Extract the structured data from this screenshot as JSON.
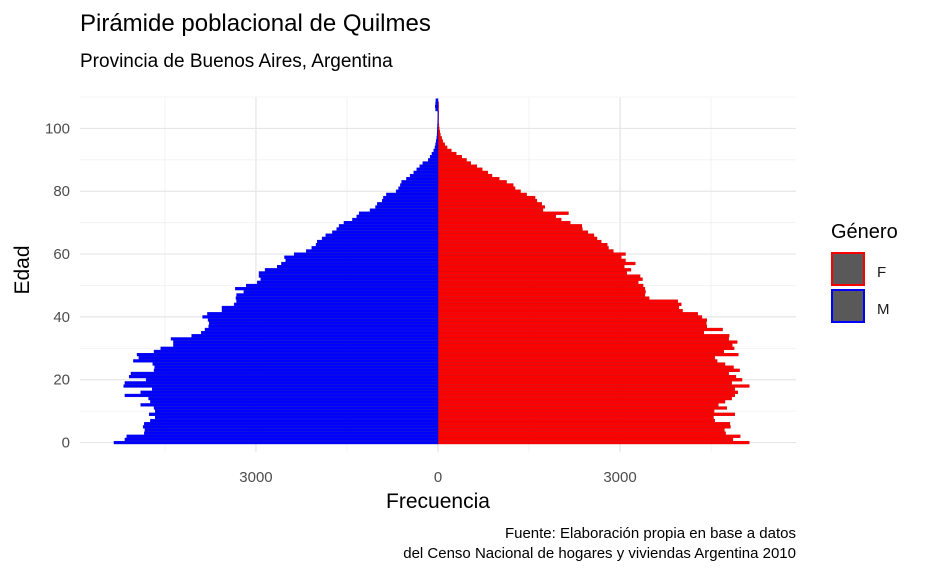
{
  "chart_data": {
    "type": "bar",
    "orientation": "horizontal",
    "layout": "population-pyramid",
    "title": "Pirámide poblacional de Quilmes",
    "subtitle": "Provincia de Buenos Aires, Argentina",
    "xlabel": "Frecuencia",
    "ylabel": "Edad",
    "caption": [
      "Fuente: Elaboración propia en base a datos",
      "del Censo Nacional de hogares y viviendas Argentina 2010"
    ],
    "xlim": [
      -5900,
      5900
    ],
    "ylim": [
      -3,
      110
    ],
    "x_ticks": [
      -3000,
      0,
      3000
    ],
    "x_tick_labels": [
      "3000",
      "0",
      "3000"
    ],
    "y_ticks": [
      0,
      20,
      40,
      60,
      80,
      100
    ],
    "y_tick_labels": [
      "0",
      "20",
      "40",
      "60",
      "80",
      "100"
    ],
    "grid": true,
    "legend": {
      "title": "Género",
      "position": "right",
      "entries": [
        {
          "label": "F",
          "fill": "#595959",
          "stroke": "#ff0000"
        },
        {
          "label": "M",
          "fill": "#595959",
          "stroke": "#0000ff"
        }
      ]
    },
    "ages": [
      0,
      1,
      2,
      3,
      4,
      5,
      6,
      7,
      8,
      9,
      10,
      11,
      12,
      13,
      14,
      15,
      16,
      17,
      18,
      19,
      20,
      21,
      22,
      23,
      24,
      25,
      26,
      27,
      28,
      29,
      30,
      31,
      32,
      33,
      34,
      35,
      36,
      37,
      38,
      39,
      40,
      41,
      42,
      43,
      44,
      45,
      46,
      47,
      48,
      49,
      50,
      51,
      52,
      53,
      54,
      55,
      56,
      57,
      58,
      59,
      60,
      61,
      62,
      63,
      64,
      65,
      66,
      67,
      68,
      69,
      70,
      71,
      72,
      73,
      74,
      75,
      76,
      77,
      78,
      79,
      80,
      81,
      82,
      83,
      84,
      85,
      86,
      87,
      88,
      89,
      90,
      91,
      92,
      93,
      94,
      95,
      96,
      97,
      98,
      99,
      100,
      101,
      102,
      103,
      104,
      105,
      106,
      107,
      108,
      109
    ],
    "series": [
      {
        "name": "F",
        "fill": "#ff0000",
        "stroke": "#cc0000",
        "values": [
          5130,
          4860,
          4980,
          4740,
          4720,
          4820,
          4810,
          4560,
          4540,
          4890,
          4550,
          4760,
          4620,
          4730,
          4840,
          4890,
          4940,
          4890,
          5130,
          4840,
          5010,
          4910,
          4790,
          4970,
          4870,
          4730,
          4600,
          4560,
          4950,
          4710,
          4880,
          4850,
          4930,
          4790,
          4800,
          4380,
          4690,
          4430,
          4420,
          4430,
          4350,
          4280,
          4030,
          3970,
          4010,
          3950,
          3480,
          3410,
          3420,
          3410,
          3380,
          3300,
          3370,
          3330,
          3110,
          3180,
          3070,
          3250,
          3090,
          3020,
          3090,
          2890,
          2810,
          2790,
          2690,
          2620,
          2570,
          2470,
          2380,
          2370,
          2180,
          2030,
          1940,
          2150,
          1730,
          1760,
          1710,
          1630,
          1600,
          1460,
          1360,
          1270,
          1240,
          1130,
          1010,
          890,
          820,
          730,
          640,
          540,
          470,
          390,
          300,
          220,
          150,
          110,
          80,
          60,
          40,
          30,
          20,
          15,
          10,
          8,
          5,
          3,
          2,
          1,
          1,
          0
        ]
      },
      {
        "name": "M",
        "fill": "#0000ff",
        "stroke": "#0000cc",
        "values": [
          5340,
          5160,
          5130,
          4840,
          4830,
          4860,
          4840,
          4740,
          4660,
          4760,
          4660,
          4680,
          4900,
          4740,
          4770,
          5160,
          4900,
          4710,
          5180,
          5160,
          4810,
          5090,
          5060,
          4680,
          4670,
          4700,
          5020,
          4930,
          4960,
          4680,
          4570,
          4360,
          4360,
          4400,
          4060,
          3900,
          3840,
          3780,
          3770,
          3790,
          3880,
          3800,
          3560,
          3560,
          3360,
          3320,
          3330,
          3320,
          3200,
          3340,
          3160,
          2980,
          2920,
          2950,
          2950,
          2850,
          2650,
          2580,
          2510,
          2530,
          2370,
          2170,
          2080,
          2010,
          1990,
          1910,
          1850,
          1740,
          1670,
          1630,
          1550,
          1410,
          1340,
          1300,
          1120,
          1030,
          1000,
          920,
          900,
          850,
          690,
          650,
          620,
          600,
          520,
          460,
          400,
          350,
          300,
          250,
          160,
          130,
          100,
          70,
          50,
          40,
          30,
          20,
          15,
          12,
          10,
          8,
          6,
          4,
          3,
          2,
          40,
          45,
          40,
          35
        ]
      }
    ]
  }
}
